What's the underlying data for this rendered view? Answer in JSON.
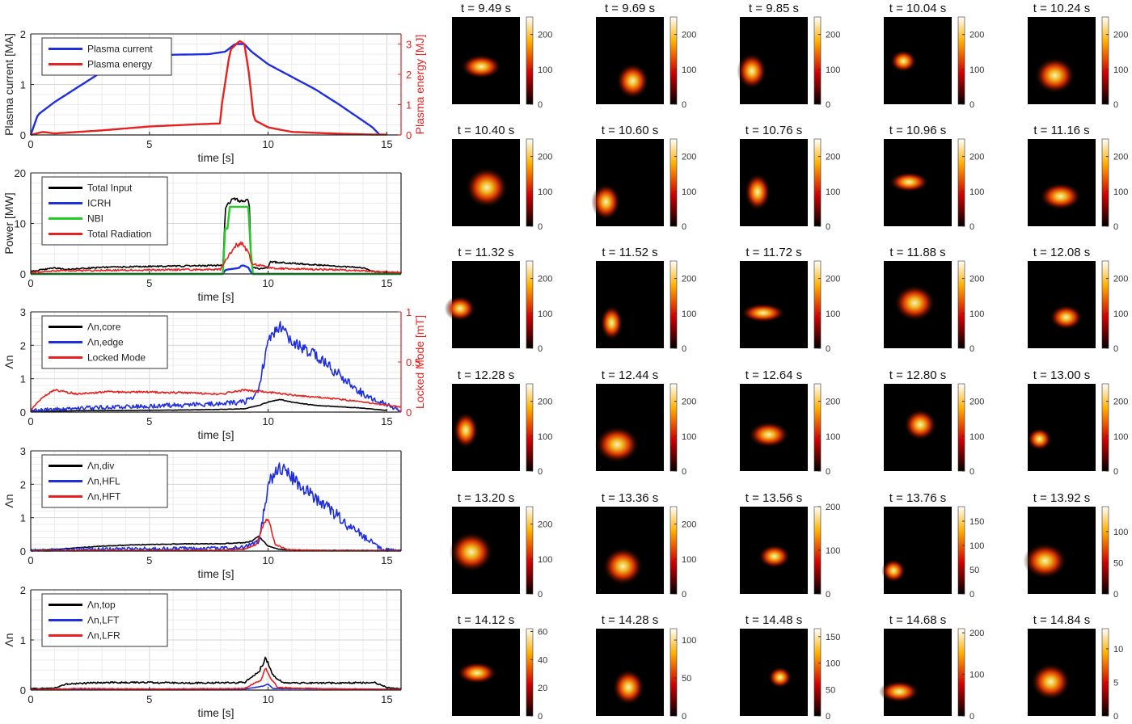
{
  "line_panels": [
    {
      "xlabel": "time [s]",
      "ylabel": "Plasma current [MA]",
      "ylabel2": "Plasma energy [MJ]",
      "xlim": [
        0,
        15.6
      ],
      "xticks": [
        0,
        5,
        10,
        15
      ],
      "ylim": [
        0,
        2
      ],
      "yticks": [
        0,
        1,
        2
      ],
      "ylim2": [
        0,
        3.33
      ],
      "yticks2": [
        0,
        1,
        2,
        3
      ],
      "legend": [
        {
          "label": "Plasma current",
          "color": "#1f2fe0"
        },
        {
          "label": "Plasma energy",
          "color": "#e82020"
        }
      ]
    },
    {
      "xlabel": "time [s]",
      "ylabel": "Power [MW]",
      "xlim": [
        0,
        15.6
      ],
      "xticks": [
        0,
        5,
        10,
        15
      ],
      "ylim": [
        0,
        20
      ],
      "yticks": [
        0,
        10,
        20
      ],
      "legend": [
        {
          "label": "Total Input",
          "color": "#000000"
        },
        {
          "label": "ICRH",
          "color": "#1f2fe0"
        },
        {
          "label": "NBI",
          "color": "#22cc22"
        },
        {
          "label": "Total Radiation",
          "color": "#e82020"
        }
      ]
    },
    {
      "xlabel": "time [s]",
      "ylabel": "Λn",
      "ylabel2": "Locked Mode [mT]",
      "xlim": [
        0,
        15.6
      ],
      "xticks": [
        0,
        5,
        10,
        15
      ],
      "ylim": [
        0,
        3
      ],
      "yticks": [
        0,
        1,
        2,
        3
      ],
      "ylim2": [
        0,
        1
      ],
      "yticks2": [
        0,
        0.5,
        1
      ],
      "legend": [
        {
          "label": "Λn,core",
          "color": "#000000"
        },
        {
          "label": "Λn,edge",
          "color": "#1f2fe0"
        },
        {
          "label": "Locked Mode",
          "color": "#e82020"
        }
      ]
    },
    {
      "xlabel": "time [s]",
      "ylabel": "Λn",
      "xlim": [
        0,
        15.6
      ],
      "xticks": [
        0,
        5,
        10,
        15
      ],
      "ylim": [
        0,
        3
      ],
      "yticks": [
        0,
        1,
        2,
        3
      ],
      "legend": [
        {
          "label": "Λn,div",
          "color": "#000000"
        },
        {
          "label": "Λn,HFL",
          "color": "#1f2fe0"
        },
        {
          "label": "Λn,HFT",
          "color": "#e82020"
        }
      ]
    },
    {
      "xlabel": "time [s]",
      "ylabel": "Λn",
      "xlim": [
        0,
        15.6
      ],
      "xticks": [
        0,
        5,
        10,
        15
      ],
      "ylim": [
        0,
        2
      ],
      "yticks": [
        0,
        1,
        2
      ],
      "legend": [
        {
          "label": "Λn,top",
          "color": "#000000"
        },
        {
          "label": "Λn,LFT",
          "color": "#1f2fe0"
        },
        {
          "label": "Λn,LFR",
          "color": "#e82020"
        }
      ]
    }
  ],
  "chart_data": [
    {
      "type": "line",
      "xlabel": "time [s]",
      "ylabel": "Plasma current [MA]",
      "y2label": "Plasma energy [MJ]",
      "xlim": [
        0,
        15.6
      ],
      "ylim": [
        0,
        2
      ],
      "y2lim": [
        0,
        3.33
      ],
      "grid": true,
      "legend": "top-left",
      "series": [
        {
          "name": "Plasma current",
          "axis": "left",
          "x": [
            0,
            0.3,
            1,
            2,
            3,
            4.5,
            5,
            7.5,
            8.2,
            8.6,
            9.0,
            9.3,
            10,
            12,
            13,
            14.4,
            14.7
          ],
          "y": [
            0,
            0.4,
            0.65,
            0.95,
            1.25,
            1.58,
            1.58,
            1.6,
            1.65,
            1.8,
            1.8,
            1.65,
            1.4,
            0.9,
            0.6,
            0.15,
            0
          ]
        },
        {
          "name": "Plasma energy",
          "axis": "right",
          "x": [
            0,
            0.5,
            1,
            3,
            5,
            7,
            8,
            8.05,
            8.4,
            8.8,
            9.0,
            9.2,
            9.4,
            10,
            11,
            13,
            14,
            14.5,
            15
          ],
          "y": [
            0,
            0.1,
            0.05,
            0.15,
            0.28,
            0.35,
            0.38,
            1.0,
            2.8,
            3.1,
            3.0,
            2.0,
            0.5,
            0.25,
            0.1,
            0.04,
            0.02,
            0.01,
            0.01
          ]
        }
      ]
    },
    {
      "type": "line",
      "xlabel": "time [s]",
      "ylabel": "Power [MW]",
      "xlim": [
        0,
        15.6
      ],
      "ylim": [
        0,
        20
      ],
      "grid": true,
      "legend": "top-left",
      "series": [
        {
          "name": "Total Input",
          "x": [
            0,
            1,
            1.5,
            3,
            5,
            7,
            8.1,
            8.2,
            8.5,
            8.8,
            9.2,
            9.3,
            9.6,
            10,
            10.1,
            12,
            14,
            14.5,
            15.6
          ],
          "y": [
            0.5,
            1.2,
            0.9,
            1.3,
            1.5,
            1.6,
            1.7,
            13,
            15,
            14.5,
            14.5,
            1.5,
            1,
            1.2,
            2.4,
            1.8,
            1.2,
            0.4,
            0.2
          ]
        },
        {
          "name": "ICRH",
          "x": [
            0,
            8.1,
            8.2,
            8.8,
            8.9,
            9.2,
            9.3,
            15.6
          ],
          "y": [
            0,
            0,
            0.8,
            1.2,
            1.8,
            1.2,
            0,
            0
          ]
        },
        {
          "name": "NBI",
          "x": [
            0,
            8.1,
            8.15,
            8.3,
            8.35,
            9.2,
            9.3,
            15.6
          ],
          "y": [
            0,
            0,
            9,
            9,
            13.3,
            13.3,
            0,
            0
          ]
        },
        {
          "name": "Total Radiation",
          "x": [
            0,
            1,
            3,
            5,
            8,
            8.2,
            8.6,
            8.9,
            9.2,
            9.3,
            9.8,
            10,
            11,
            13,
            15.6
          ],
          "y": [
            0.3,
            0.6,
            0.7,
            0.8,
            0.9,
            2.5,
            5.5,
            6,
            4,
            2,
            1.5,
            1.2,
            1,
            0.8,
            0.3
          ]
        }
      ]
    },
    {
      "type": "line",
      "xlabel": "time [s]",
      "ylabel": "Λn",
      "y2label": "Locked Mode [mT]",
      "xlim": [
        0,
        15.6
      ],
      "ylim": [
        0,
        3
      ],
      "y2lim": [
        0,
        1
      ],
      "grid": true,
      "legend": "top-left",
      "series": [
        {
          "name": "Λn,core",
          "axis": "left",
          "x": [
            0,
            2,
            4,
            6,
            8,
            9,
            9.6,
            10,
            10.5,
            11,
            12,
            14,
            15
          ],
          "y": [
            0.02,
            0.04,
            0.05,
            0.06,
            0.08,
            0.1,
            0.2,
            0.3,
            0.38,
            0.3,
            0.2,
            0.12,
            0.05
          ]
        },
        {
          "name": "Λn,edge",
          "axis": "left",
          "x": [
            0,
            2,
            5,
            8,
            9,
            9.6,
            10,
            10.5,
            11,
            12,
            13,
            14,
            14.8,
            15.6
          ],
          "y": [
            0.05,
            0.12,
            0.18,
            0.25,
            0.3,
            0.6,
            2.2,
            2.6,
            2.1,
            1.7,
            1.1,
            0.55,
            0.3,
            0.02
          ]
        },
        {
          "name": "Locked Mode",
          "axis": "right",
          "x": [
            0,
            0.5,
            1,
            2,
            3,
            5,
            7,
            8,
            9,
            10,
            11,
            12,
            13,
            14,
            15,
            15.6
          ],
          "y": [
            0.02,
            0.15,
            0.22,
            0.18,
            0.2,
            0.2,
            0.19,
            0.18,
            0.22,
            0.2,
            0.17,
            0.15,
            0.13,
            0.1,
            0.07,
            0.05
          ]
        }
      ]
    },
    {
      "type": "line",
      "xlabel": "time [s]",
      "ylabel": "Λn",
      "xlim": [
        0,
        15.6
      ],
      "ylim": [
        0,
        3
      ],
      "grid": true,
      "legend": "top-left",
      "series": [
        {
          "name": "Λn,div",
          "x": [
            0,
            1,
            2,
            3,
            5,
            7,
            8,
            9,
            9.3,
            9.6,
            10,
            10.5,
            11,
            13,
            15.6
          ],
          "y": [
            0.02,
            0.05,
            0.1,
            0.15,
            0.2,
            0.22,
            0.22,
            0.25,
            0.3,
            0.45,
            0.15,
            0.05,
            0.03,
            0.02,
            0.02
          ]
        },
        {
          "name": "Λn,HFL",
          "x": [
            0,
            1,
            2,
            4,
            6,
            8,
            9,
            9.6,
            10,
            10.5,
            11,
            12,
            13,
            14,
            14.5,
            14.8,
            15.6
          ],
          "y": [
            0.01,
            0.03,
            0.05,
            0.06,
            0.07,
            0.08,
            0.1,
            0.3,
            2.0,
            2.5,
            2.2,
            1.6,
            1.0,
            0.45,
            0.2,
            0.05,
            0
          ]
        },
        {
          "name": "Λn,HFT",
          "x": [
            0,
            2,
            5,
            8,
            9,
            9.5,
            9.8,
            10,
            10.3,
            10.8,
            12,
            15.6
          ],
          "y": [
            0.01,
            0.02,
            0.02,
            0.03,
            0.05,
            0.2,
            0.8,
            1.0,
            0.2,
            0.05,
            0.02,
            0.01
          ]
        }
      ]
    },
    {
      "type": "line",
      "xlabel": "time [s]",
      "ylabel": "Λn",
      "xlim": [
        0,
        15.6
      ],
      "ylim": [
        0,
        2
      ],
      "grid": true,
      "legend": "top-left",
      "series": [
        {
          "name": "Λn,top",
          "x": [
            0,
            1,
            1.5,
            3,
            5,
            7,
            9,
            9.6,
            9.9,
            10.2,
            10.6,
            12,
            14.5,
            15,
            15.6
          ],
          "y": [
            0.03,
            0.04,
            0.12,
            0.15,
            0.15,
            0.14,
            0.15,
            0.35,
            0.65,
            0.3,
            0.15,
            0.14,
            0.15,
            0.05,
            0.02
          ]
        },
        {
          "name": "Λn,LFT",
          "x": [
            0,
            5,
            9,
            9.8,
            10,
            10.2,
            14,
            15.6
          ],
          "y": [
            0.01,
            0.02,
            0.02,
            0.08,
            0.12,
            0.03,
            0.02,
            0.01
          ]
        },
        {
          "name": "Λn,LFR",
          "x": [
            0,
            2,
            5,
            9,
            9.7,
            9.9,
            10.1,
            10.4,
            12,
            15.6
          ],
          "y": [
            0.01,
            0.03,
            0.02,
            0.03,
            0.2,
            0.45,
            0.25,
            0.05,
            0.03,
            0.01
          ]
        }
      ]
    },
    {
      "type": "heatmap",
      "description_free": true,
      "frames": [
        {
          "title": "t = 9.49 s",
          "cmax": 250,
          "ticks": [
            0,
            100,
            200
          ]
        },
        {
          "title": "t = 9.69 s",
          "cmax": 250,
          "ticks": [
            0,
            100,
            200
          ]
        },
        {
          "title": "t = 9.85 s",
          "cmax": 250,
          "ticks": [
            0,
            100,
            200
          ]
        },
        {
          "title": "t = 10.04 s",
          "cmax": 250,
          "ticks": [
            0,
            100,
            200
          ]
        },
        {
          "title": "t = 10.24 s",
          "cmax": 250,
          "ticks": [
            0,
            100,
            200
          ]
        },
        {
          "title": "t = 10.40 s",
          "cmax": 250,
          "ticks": [
            0,
            100,
            200
          ]
        },
        {
          "title": "t = 10.60 s",
          "cmax": 250,
          "ticks": [
            0,
            100,
            200
          ]
        },
        {
          "title": "t = 10.76 s",
          "cmax": 250,
          "ticks": [
            0,
            100,
            200
          ]
        },
        {
          "title": "t = 10.96 s",
          "cmax": 250,
          "ticks": [
            0,
            100,
            200
          ]
        },
        {
          "title": "t = 11.16 s",
          "cmax": 250,
          "ticks": [
            0,
            100,
            200
          ]
        },
        {
          "title": "t = 11.32 s",
          "cmax": 250,
          "ticks": [
            0,
            100,
            200
          ]
        },
        {
          "title": "t = 11.52 s",
          "cmax": 250,
          "ticks": [
            0,
            100,
            200
          ]
        },
        {
          "title": "t = 11.72 s",
          "cmax": 250,
          "ticks": [
            0,
            100,
            200
          ]
        },
        {
          "title": "t = 11.88 s",
          "cmax": 250,
          "ticks": [
            0,
            100,
            200
          ]
        },
        {
          "title": "t = 12.08 s",
          "cmax": 250,
          "ticks": [
            0,
            100,
            200
          ]
        },
        {
          "title": "t = 12.28 s",
          "cmax": 250,
          "ticks": [
            0,
            100,
            200
          ]
        },
        {
          "title": "t = 12.44 s",
          "cmax": 250,
          "ticks": [
            0,
            100,
            200
          ]
        },
        {
          "title": "t = 12.64 s",
          "cmax": 250,
          "ticks": [
            0,
            100,
            200
          ]
        },
        {
          "title": "t = 12.80 s",
          "cmax": 250,
          "ticks": [
            0,
            100,
            200
          ]
        },
        {
          "title": "t = 13.00 s",
          "cmax": 250,
          "ticks": [
            0,
            100,
            200
          ]
        },
        {
          "title": "t = 13.20 s",
          "cmax": 250,
          "ticks": [
            0,
            100,
            200
          ]
        },
        {
          "title": "t = 13.36 s",
          "cmax": 250,
          "ticks": [
            0,
            100,
            200
          ]
        },
        {
          "title": "t = 13.56 s",
          "cmax": 200,
          "ticks": [
            0,
            100,
            200
          ]
        },
        {
          "title": "t = 13.76 s",
          "cmax": 180,
          "ticks": [
            0,
            50,
            100,
            150
          ]
        },
        {
          "title": "t = 13.92 s",
          "cmax": 140,
          "ticks": [
            0,
            50,
            100
          ]
        },
        {
          "title": "t = 14.12 s",
          "cmax": 62,
          "ticks": [
            0,
            20,
            40,
            60
          ]
        },
        {
          "title": "t = 14.28 s",
          "cmax": 115,
          "ticks": [
            0,
            50,
            100
          ]
        },
        {
          "title": "t = 14.48 s",
          "cmax": 165,
          "ticks": [
            0,
            50,
            100,
            150
          ]
        },
        {
          "title": "t = 14.68 s",
          "cmax": 210,
          "ticks": [
            0,
            100,
            200
          ]
        },
        {
          "title": "t = 14.84 s",
          "cmax": 13,
          "ticks": [
            0,
            5,
            10
          ]
        }
      ]
    }
  ]
}
